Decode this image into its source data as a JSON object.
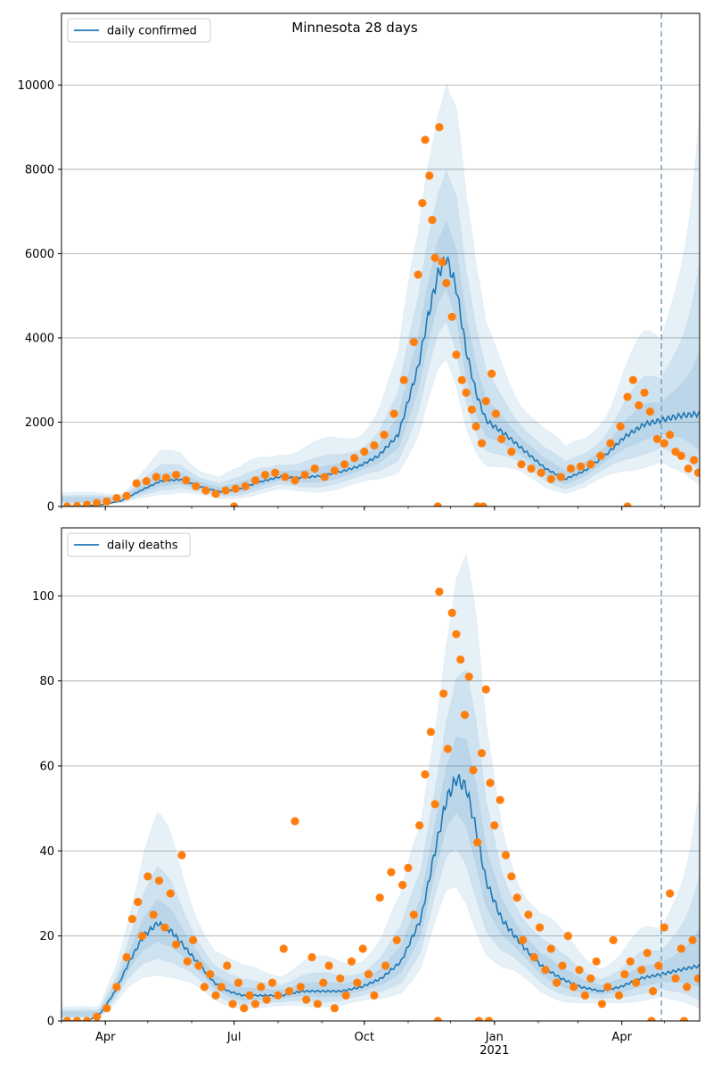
{
  "figure": {
    "title": "Minnesota 28 days",
    "colors": {
      "band": "#1f77b4",
      "line": "#1f77b4",
      "dots": "#ff7f0e",
      "grid": "#b0b0b0",
      "forecast_line": "#7aa6c2"
    }
  },
  "chart_data": [
    {
      "type": "line",
      "panel": "top",
      "series": [
        {
          "name": "daily confirmed",
          "role": "model median"
        },
        {
          "role": "reported daily cases",
          "style": "scatter"
        }
      ],
      "legend": {
        "label": "daily confirmed",
        "placement": "top-left"
      },
      "ylim": [
        0,
        11700
      ],
      "yticks": [
        0,
        2000,
        4000,
        6000,
        8000,
        10000
      ],
      "ytick_labels": [
        "0",
        "2000",
        "4000",
        "6000",
        "8000",
        "10000"
      ],
      "xlim": [
        "2020-03-01",
        "2021-05-26"
      ],
      "grid": "horizontal",
      "forecast_start": "2021-04-29",
      "median_curve": [
        [
          "2020-03-01",
          0
        ],
        [
          "2020-03-15",
          10
        ],
        [
          "2020-03-29",
          40
        ],
        [
          "2020-04-12",
          130
        ],
        [
          "2020-04-26",
          380
        ],
        [
          "2020-05-10",
          600
        ],
        [
          "2020-05-24",
          640
        ],
        [
          "2020-06-07",
          470
        ],
        [
          "2020-06-21",
          350
        ],
        [
          "2020-07-05",
          420
        ],
        [
          "2020-07-19",
          580
        ],
        [
          "2020-08-02",
          700
        ],
        [
          "2020-08-16",
          680
        ],
        [
          "2020-08-30",
          720
        ],
        [
          "2020-09-13",
          810
        ],
        [
          "2020-09-27",
          950
        ],
        [
          "2020-10-11",
          1200
        ],
        [
          "2020-10-25",
          1700
        ],
        [
          "2020-11-08",
          3300
        ],
        [
          "2020-11-15",
          4500
        ],
        [
          "2020-11-22",
          5500
        ],
        [
          "2020-11-28",
          5900
        ],
        [
          "2020-12-05",
          5200
        ],
        [
          "2020-12-12",
          3700
        ],
        [
          "2020-12-19",
          2700
        ],
        [
          "2020-12-26",
          2050
        ],
        [
          "2021-01-09",
          1700
        ],
        [
          "2021-01-23",
          1300
        ],
        [
          "2021-02-06",
          900
        ],
        [
          "2021-02-20",
          650
        ],
        [
          "2021-03-06",
          850
        ],
        [
          "2021-03-20",
          1200
        ],
        [
          "2021-04-03",
          1650
        ],
        [
          "2021-04-17",
          1950
        ],
        [
          "2021-04-29",
          2050
        ],
        [
          "2021-05-12",
          2150
        ],
        [
          "2021-05-26",
          2200
        ]
      ],
      "band_half_widths": [
        0.18,
        0.45,
        0.9
      ],
      "observed": [
        [
          "2020-03-05",
          0
        ],
        [
          "2020-03-12",
          10
        ],
        [
          "2020-03-19",
          40
        ],
        [
          "2020-03-26",
          80
        ],
        [
          "2020-04-02",
          120
        ],
        [
          "2020-04-09",
          200
        ],
        [
          "2020-04-16",
          250
        ],
        [
          "2020-04-23",
          550
        ],
        [
          "2020-04-30",
          600
        ],
        [
          "2020-05-07",
          700
        ],
        [
          "2020-05-14",
          680
        ],
        [
          "2020-05-21",
          750
        ],
        [
          "2020-05-28",
          620
        ],
        [
          "2020-06-04",
          480
        ],
        [
          "2020-06-11",
          380
        ],
        [
          "2020-06-18",
          300
        ],
        [
          "2020-06-25",
          380
        ],
        [
          "2020-07-02",
          420
        ],
        [
          "2020-07-09",
          480
        ],
        [
          "2020-07-16",
          620
        ],
        [
          "2020-07-23",
          750
        ],
        [
          "2020-07-30",
          800
        ],
        [
          "2020-08-06",
          700
        ],
        [
          "2020-08-13",
          620
        ],
        [
          "2020-08-20",
          750
        ],
        [
          "2020-08-27",
          900
        ],
        [
          "2020-09-03",
          700
        ],
        [
          "2020-09-10",
          850
        ],
        [
          "2020-09-17",
          1000
        ],
        [
          "2020-09-24",
          1150
        ],
        [
          "2020-10-01",
          1300
        ],
        [
          "2020-10-08",
          1450
        ],
        [
          "2020-10-15",
          1700
        ],
        [
          "2020-10-22",
          2200
        ],
        [
          "2020-10-29",
          3000
        ],
        [
          "2020-11-05",
          3900
        ],
        [
          "2020-11-08",
          5500
        ],
        [
          "2020-11-11",
          7200
        ],
        [
          "2020-11-13",
          8700
        ],
        [
          "2020-11-16",
          7850
        ],
        [
          "2020-11-18",
          6800
        ],
        [
          "2020-11-20",
          5900
        ],
        [
          "2020-11-23",
          9000
        ],
        [
          "2020-11-25",
          5800
        ],
        [
          "2020-11-28",
          5300
        ],
        [
          "2020-12-02",
          4500
        ],
        [
          "2020-12-05",
          3600
        ],
        [
          "2020-12-09",
          3000
        ],
        [
          "2020-12-12",
          2700
        ],
        [
          "2020-12-16",
          2300
        ],
        [
          "2020-12-19",
          1900
        ],
        [
          "2020-12-23",
          1500
        ],
        [
          "2020-12-26",
          2500
        ],
        [
          "2020-12-30",
          3150
        ],
        [
          "2021-01-02",
          2200
        ],
        [
          "2021-01-06",
          1600
        ],
        [
          "2021-01-13",
          1300
        ],
        [
          "2021-01-20",
          1000
        ],
        [
          "2021-01-27",
          900
        ],
        [
          "2021-02-03",
          800
        ],
        [
          "2021-02-10",
          650
        ],
        [
          "2021-02-17",
          700
        ],
        [
          "2021-02-24",
          900
        ],
        [
          "2021-03-03",
          950
        ],
        [
          "2021-03-10",
          1000
        ],
        [
          "2021-03-17",
          1200
        ],
        [
          "2021-03-24",
          1500
        ],
        [
          "2021-03-31",
          1900
        ],
        [
          "2021-04-05",
          2600
        ],
        [
          "2021-04-09",
          3000
        ],
        [
          "2021-04-13",
          2400
        ],
        [
          "2021-04-17",
          2700
        ],
        [
          "2021-04-21",
          2250
        ],
        [
          "2021-04-26",
          1600
        ],
        [
          "2021-05-01",
          1500
        ],
        [
          "2021-05-05",
          1700
        ],
        [
          "2021-05-09",
          1300
        ],
        [
          "2021-05-13",
          1200
        ],
        [
          "2021-05-18",
          900
        ],
        [
          "2021-05-22",
          1100
        ],
        [
          "2021-05-25",
          800
        ]
      ],
      "observed_zero_days": [
        "2020-07-01",
        "2020-11-22",
        "2020-12-20",
        "2020-12-24",
        "2021-04-05"
      ]
    },
    {
      "type": "line",
      "panel": "bottom",
      "series": [
        {
          "name": "daily deaths",
          "role": "model median"
        },
        {
          "role": "reported daily deaths",
          "style": "scatter"
        }
      ],
      "legend": {
        "label": "daily deaths",
        "placement": "top-left"
      },
      "ylim": [
        0,
        116
      ],
      "yticks": [
        0,
        20,
        40,
        60,
        80,
        100
      ],
      "ytick_labels": [
        "0",
        "20",
        "40",
        "60",
        "80",
        "100"
      ],
      "xlim": [
        "2020-03-01",
        "2021-05-26"
      ],
      "xticks": [
        {
          "date": "2020-04-01",
          "label": "Apr"
        },
        {
          "date": "2020-07-01",
          "label": "Jul"
        },
        {
          "date": "2020-10-01",
          "label": "Oct"
        },
        {
          "date": "2021-01-01",
          "label": "Jan",
          "sublabel": "2021"
        },
        {
          "date": "2021-04-01",
          "label": "Apr"
        }
      ],
      "grid": "horizontal",
      "forecast_start": "2021-04-29",
      "median_curve": [
        [
          "2020-03-01",
          0
        ],
        [
          "2020-03-20",
          0
        ],
        [
          "2020-03-29",
          2
        ],
        [
          "2020-04-08",
          7
        ],
        [
          "2020-04-18",
          14
        ],
        [
          "2020-04-28",
          20
        ],
        [
          "2020-05-08",
          23
        ],
        [
          "2020-05-18",
          21
        ],
        [
          "2020-05-28",
          17
        ],
        [
          "2020-06-07",
          13
        ],
        [
          "2020-06-17",
          9
        ],
        [
          "2020-06-27",
          7
        ],
        [
          "2020-07-07",
          6
        ],
        [
          "2020-07-21",
          6
        ],
        [
          "2020-08-04",
          6
        ],
        [
          "2020-08-18",
          7
        ],
        [
          "2020-09-01",
          7
        ],
        [
          "2020-09-15",
          7
        ],
        [
          "2020-09-29",
          8
        ],
        [
          "2020-10-13",
          10
        ],
        [
          "2020-10-27",
          14
        ],
        [
          "2020-11-10",
          24
        ],
        [
          "2020-11-20",
          40
        ],
        [
          "2020-11-28",
          52
        ],
        [
          "2020-12-05",
          57
        ],
        [
          "2020-12-12",
          55
        ],
        [
          "2020-12-19",
          45
        ],
        [
          "2020-12-26",
          33
        ],
        [
          "2021-01-06",
          24
        ],
        [
          "2021-01-20",
          18
        ],
        [
          "2021-02-03",
          13
        ],
        [
          "2021-02-17",
          10
        ],
        [
          "2021-03-03",
          8
        ],
        [
          "2021-03-17",
          7
        ],
        [
          "2021-03-31",
          8
        ],
        [
          "2021-04-14",
          10
        ],
        [
          "2021-04-29",
          11
        ],
        [
          "2021-05-12",
          12
        ],
        [
          "2021-05-26",
          13
        ]
      ],
      "band_half_widths": [
        0.18,
        0.45,
        0.9
      ],
      "observed": [
        [
          "2020-03-05",
          0
        ],
        [
          "2020-03-12",
          0
        ],
        [
          "2020-03-19",
          0
        ],
        [
          "2020-03-26",
          1
        ],
        [
          "2020-04-02",
          3
        ],
        [
          "2020-04-09",
          8
        ],
        [
          "2020-04-16",
          15
        ],
        [
          "2020-04-20",
          24
        ],
        [
          "2020-04-24",
          28
        ],
        [
          "2020-04-27",
          20
        ],
        [
          "2020-05-01",
          34
        ],
        [
          "2020-05-05",
          25
        ],
        [
          "2020-05-09",
          33
        ],
        [
          "2020-05-13",
          22
        ],
        [
          "2020-05-17",
          30
        ],
        [
          "2020-05-21",
          18
        ],
        [
          "2020-05-25",
          39
        ],
        [
          "2020-05-29",
          14
        ],
        [
          "2020-06-02",
          19
        ],
        [
          "2020-06-06",
          13
        ],
        [
          "2020-06-10",
          8
        ],
        [
          "2020-06-14",
          11
        ],
        [
          "2020-06-18",
          6
        ],
        [
          "2020-06-22",
          8
        ],
        [
          "2020-06-26",
          13
        ],
        [
          "2020-06-30",
          4
        ],
        [
          "2020-07-04",
          9
        ],
        [
          "2020-07-08",
          3
        ],
        [
          "2020-07-12",
          6
        ],
        [
          "2020-07-16",
          4
        ],
        [
          "2020-07-20",
          8
        ],
        [
          "2020-07-24",
          5
        ],
        [
          "2020-07-28",
          9
        ],
        [
          "2020-08-01",
          6
        ],
        [
          "2020-08-05",
          17
        ],
        [
          "2020-08-09",
          7
        ],
        [
          "2020-08-13",
          47
        ],
        [
          "2020-08-17",
          8
        ],
        [
          "2020-08-21",
          5
        ],
        [
          "2020-08-25",
          15
        ],
        [
          "2020-08-29",
          4
        ],
        [
          "2020-09-02",
          9
        ],
        [
          "2020-09-06",
          13
        ],
        [
          "2020-09-10",
          3
        ],
        [
          "2020-09-14",
          10
        ],
        [
          "2020-09-18",
          6
        ],
        [
          "2020-09-22",
          14
        ],
        [
          "2020-09-26",
          9
        ],
        [
          "2020-09-30",
          17
        ],
        [
          "2020-10-04",
          11
        ],
        [
          "2020-10-08",
          6
        ],
        [
          "2020-10-12",
          29
        ],
        [
          "2020-10-16",
          13
        ],
        [
          "2020-10-20",
          35
        ],
        [
          "2020-10-24",
          19
        ],
        [
          "2020-10-28",
          32
        ],
        [
          "2020-11-01",
          36
        ],
        [
          "2020-11-05",
          25
        ],
        [
          "2020-11-09",
          46
        ],
        [
          "2020-11-13",
          58
        ],
        [
          "2020-11-17",
          68
        ],
        [
          "2020-11-20",
          51
        ],
        [
          "2020-11-23",
          101
        ],
        [
          "2020-11-26",
          77
        ],
        [
          "2020-11-29",
          64
        ],
        [
          "2020-12-02",
          96
        ],
        [
          "2020-12-05",
          91
        ],
        [
          "2020-12-08",
          85
        ],
        [
          "2020-12-11",
          72
        ],
        [
          "2020-12-14",
          81
        ],
        [
          "2020-12-17",
          59
        ],
        [
          "2020-12-20",
          42
        ],
        [
          "2020-12-23",
          63
        ],
        [
          "2020-12-26",
          78
        ],
        [
          "2020-12-29",
          56
        ],
        [
          "2021-01-01",
          46
        ],
        [
          "2021-01-05",
          52
        ],
        [
          "2021-01-09",
          39
        ],
        [
          "2021-01-13",
          34
        ],
        [
          "2021-01-17",
          29
        ],
        [
          "2021-01-21",
          19
        ],
        [
          "2021-01-25",
          25
        ],
        [
          "2021-01-29",
          15
        ],
        [
          "2021-02-02",
          22
        ],
        [
          "2021-02-06",
          12
        ],
        [
          "2021-02-10",
          17
        ],
        [
          "2021-02-14",
          9
        ],
        [
          "2021-02-18",
          13
        ],
        [
          "2021-02-22",
          20
        ],
        [
          "2021-02-26",
          8
        ],
        [
          "2021-03-02",
          12
        ],
        [
          "2021-03-06",
          6
        ],
        [
          "2021-03-10",
          10
        ],
        [
          "2021-03-14",
          14
        ],
        [
          "2021-03-18",
          4
        ],
        [
          "2021-03-22",
          8
        ],
        [
          "2021-03-26",
          19
        ],
        [
          "2021-03-30",
          6
        ],
        [
          "2021-04-03",
          11
        ],
        [
          "2021-04-07",
          14
        ],
        [
          "2021-04-11",
          9
        ],
        [
          "2021-04-15",
          12
        ],
        [
          "2021-04-19",
          16
        ],
        [
          "2021-04-23",
          7
        ],
        [
          "2021-04-27",
          13
        ],
        [
          "2021-05-01",
          22
        ],
        [
          "2021-05-05",
          30
        ],
        [
          "2021-05-09",
          10
        ],
        [
          "2021-05-13",
          17
        ],
        [
          "2021-05-17",
          8
        ],
        [
          "2021-05-21",
          19
        ],
        [
          "2021-05-25",
          10
        ]
      ],
      "observed_zero_days": [
        "2020-11-22",
        "2020-12-21",
        "2020-12-28",
        "2021-04-22",
        "2021-05-15"
      ]
    }
  ]
}
